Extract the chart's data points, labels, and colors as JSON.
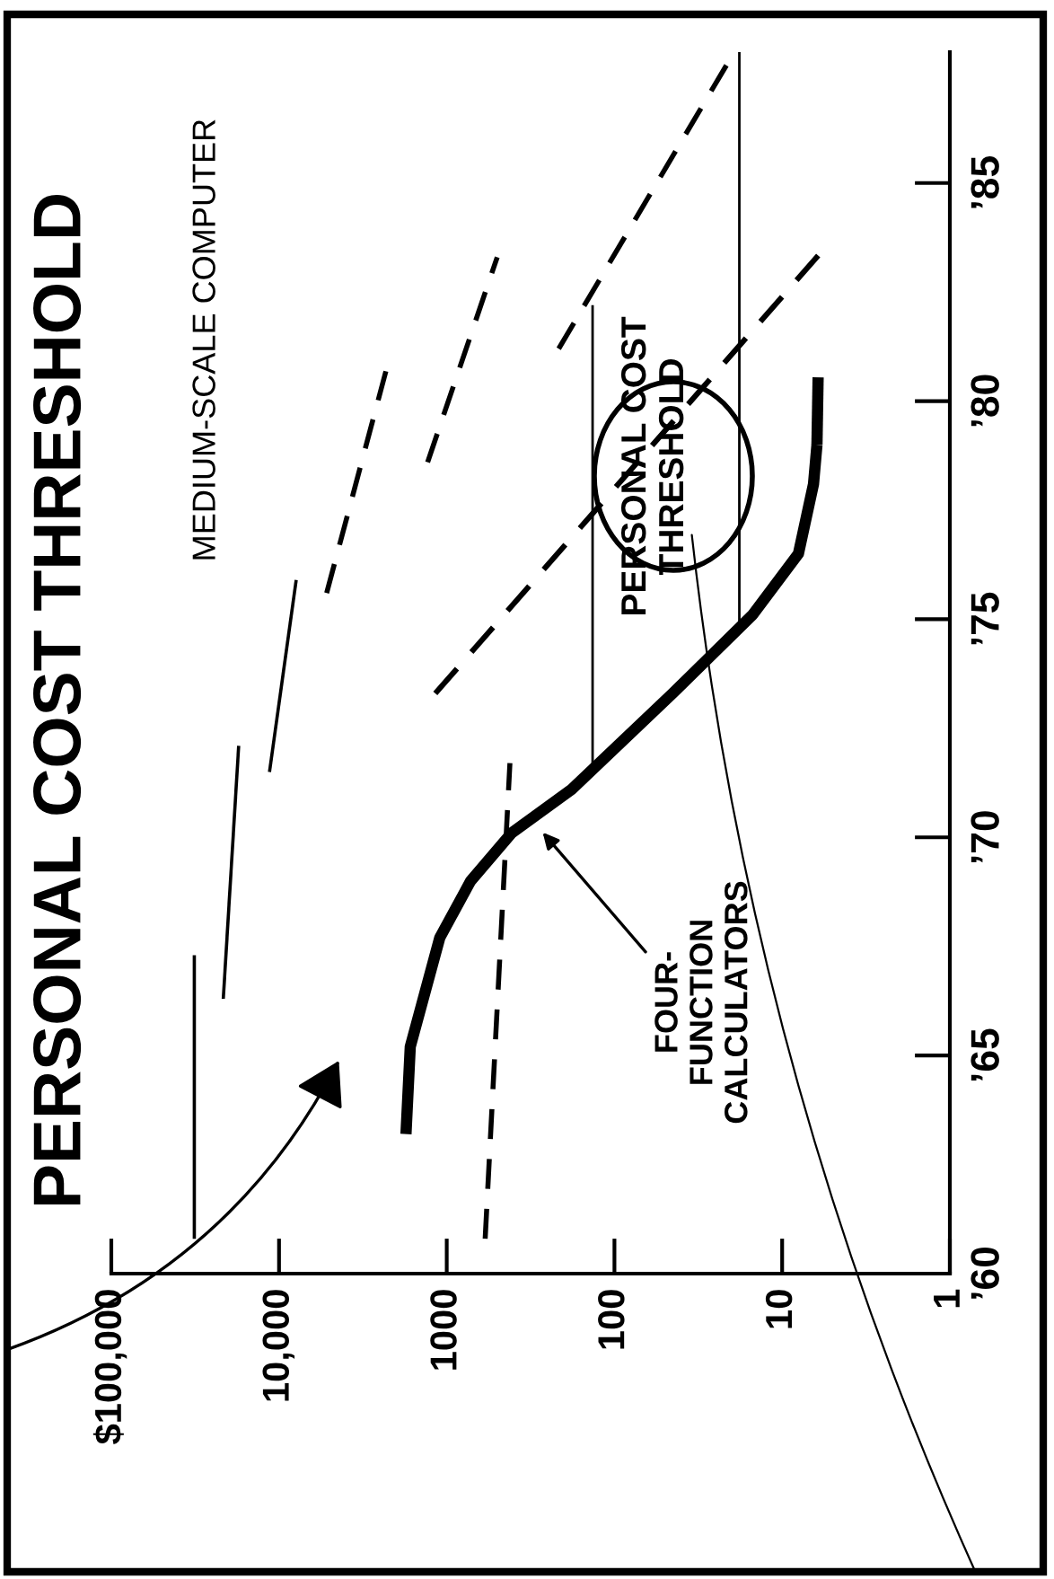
{
  "chart_data": {
    "type": "line",
    "title": "PERSONAL COST THRESHOLD",
    "xlim": [
      100000,
      1
    ],
    "log": "x",
    "xticks": [
      {
        "value": 100000,
        "label": "$100,000"
      },
      {
        "value": 10000,
        "label": "10,000"
      },
      1000,
      100,
      10,
      1
    ],
    "ylim": [
      1960,
      1988
    ],
    "yticks": [
      {
        "value": 1960,
        "label": "’60"
      },
      {
        "value": 1965,
        "label": "’65"
      },
      {
        "value": 1970,
        "label": "’70"
      },
      {
        "value": 1975,
        "label": "’75"
      },
      {
        "value": 1980,
        "label": "’80"
      },
      {
        "value": 1985,
        "label": "’85"
      }
    ],
    "grid": false,
    "marker": "none",
    "series": [
      {
        "color": "#000000",
        "line_style": "solid",
        "x": [
          32000,
          32000
        ],
        "values": [
          1960.8,
          1967.3
        ]
      },
      {
        "color": "#000000",
        "line_style": "solid",
        "x": [
          21500,
          17400
        ],
        "values": [
          1966.3,
          1972.1
        ]
      },
      {
        "color": "#000000",
        "line_style": "solid",
        "x": [
          11400,
          7900
        ],
        "values": [
          1971.5,
          1975.9
        ]
      },
      {
        "color": "#000000",
        "line_style": "dashed",
        "x": [
          5200,
          2300
        ],
        "values": [
          1975.6,
          1980.7
        ]
      },
      {
        "color": "#000000",
        "line_style": "dashed",
        "x": [
          1300,
          500
        ],
        "values": [
          1978.6,
          1983.3
        ]
      },
      {
        "color": "#000000",
        "line_style": "dashed",
        "x": [
          215,
          20
        ],
        "values": [
          1981.2,
          1987.9
        ]
      },
      {
        "color": "#000000",
        "line_style": "dashed",
        "x": [
          590,
          420
        ],
        "values": [
          1960.8,
          1971.7
        ]
      },
      {
        "color": "#000000",
        "line_style": "solid",
        "x": [
          1750,
          1650,
          1100,
          720,
          410,
          180,
          45,
          15,
          8,
          6.5,
          6.2
        ],
        "values": [
          1963.2,
          1965.2,
          1967.7,
          1969.0,
          1970.1,
          1971.1,
          1973.3,
          1975.1,
          1976.5,
          1978.1,
          1979.0
        ]
      },
      {
        "color": "#000000",
        "line_style": "dashed",
        "x": [
          6.2,
          6.1
        ],
        "values": [
          1979.0,
          1980.6
        ]
      },
      {
        "color": "#000000",
        "line_style": "dashed",
        "x": [
          1170,
          5.6
        ],
        "values": [
          1973.3,
          1983.5
        ]
      },
      {
        "color": "#000000",
        "line_style": "solid",
        "x": [
          135,
          135
        ],
        "values": [
          1971.5,
          1982.2
        ]
      },
      {
        "color": "#000000",
        "line_style": "solid",
        "x": [
          18,
          18
        ],
        "values": [
          1974.8,
          1988.0
        ]
      }
    ],
    "annotations": [
      "MEDIUM-SCALE COMPUTER",
      "PERSONAL COST\nTHRESHOLD",
      {
        "text": "FOUR-\nFUNCTION\nCALCULATORS",
        "x": 280,
        "y": 1970.2
      }
    ]
  }
}
